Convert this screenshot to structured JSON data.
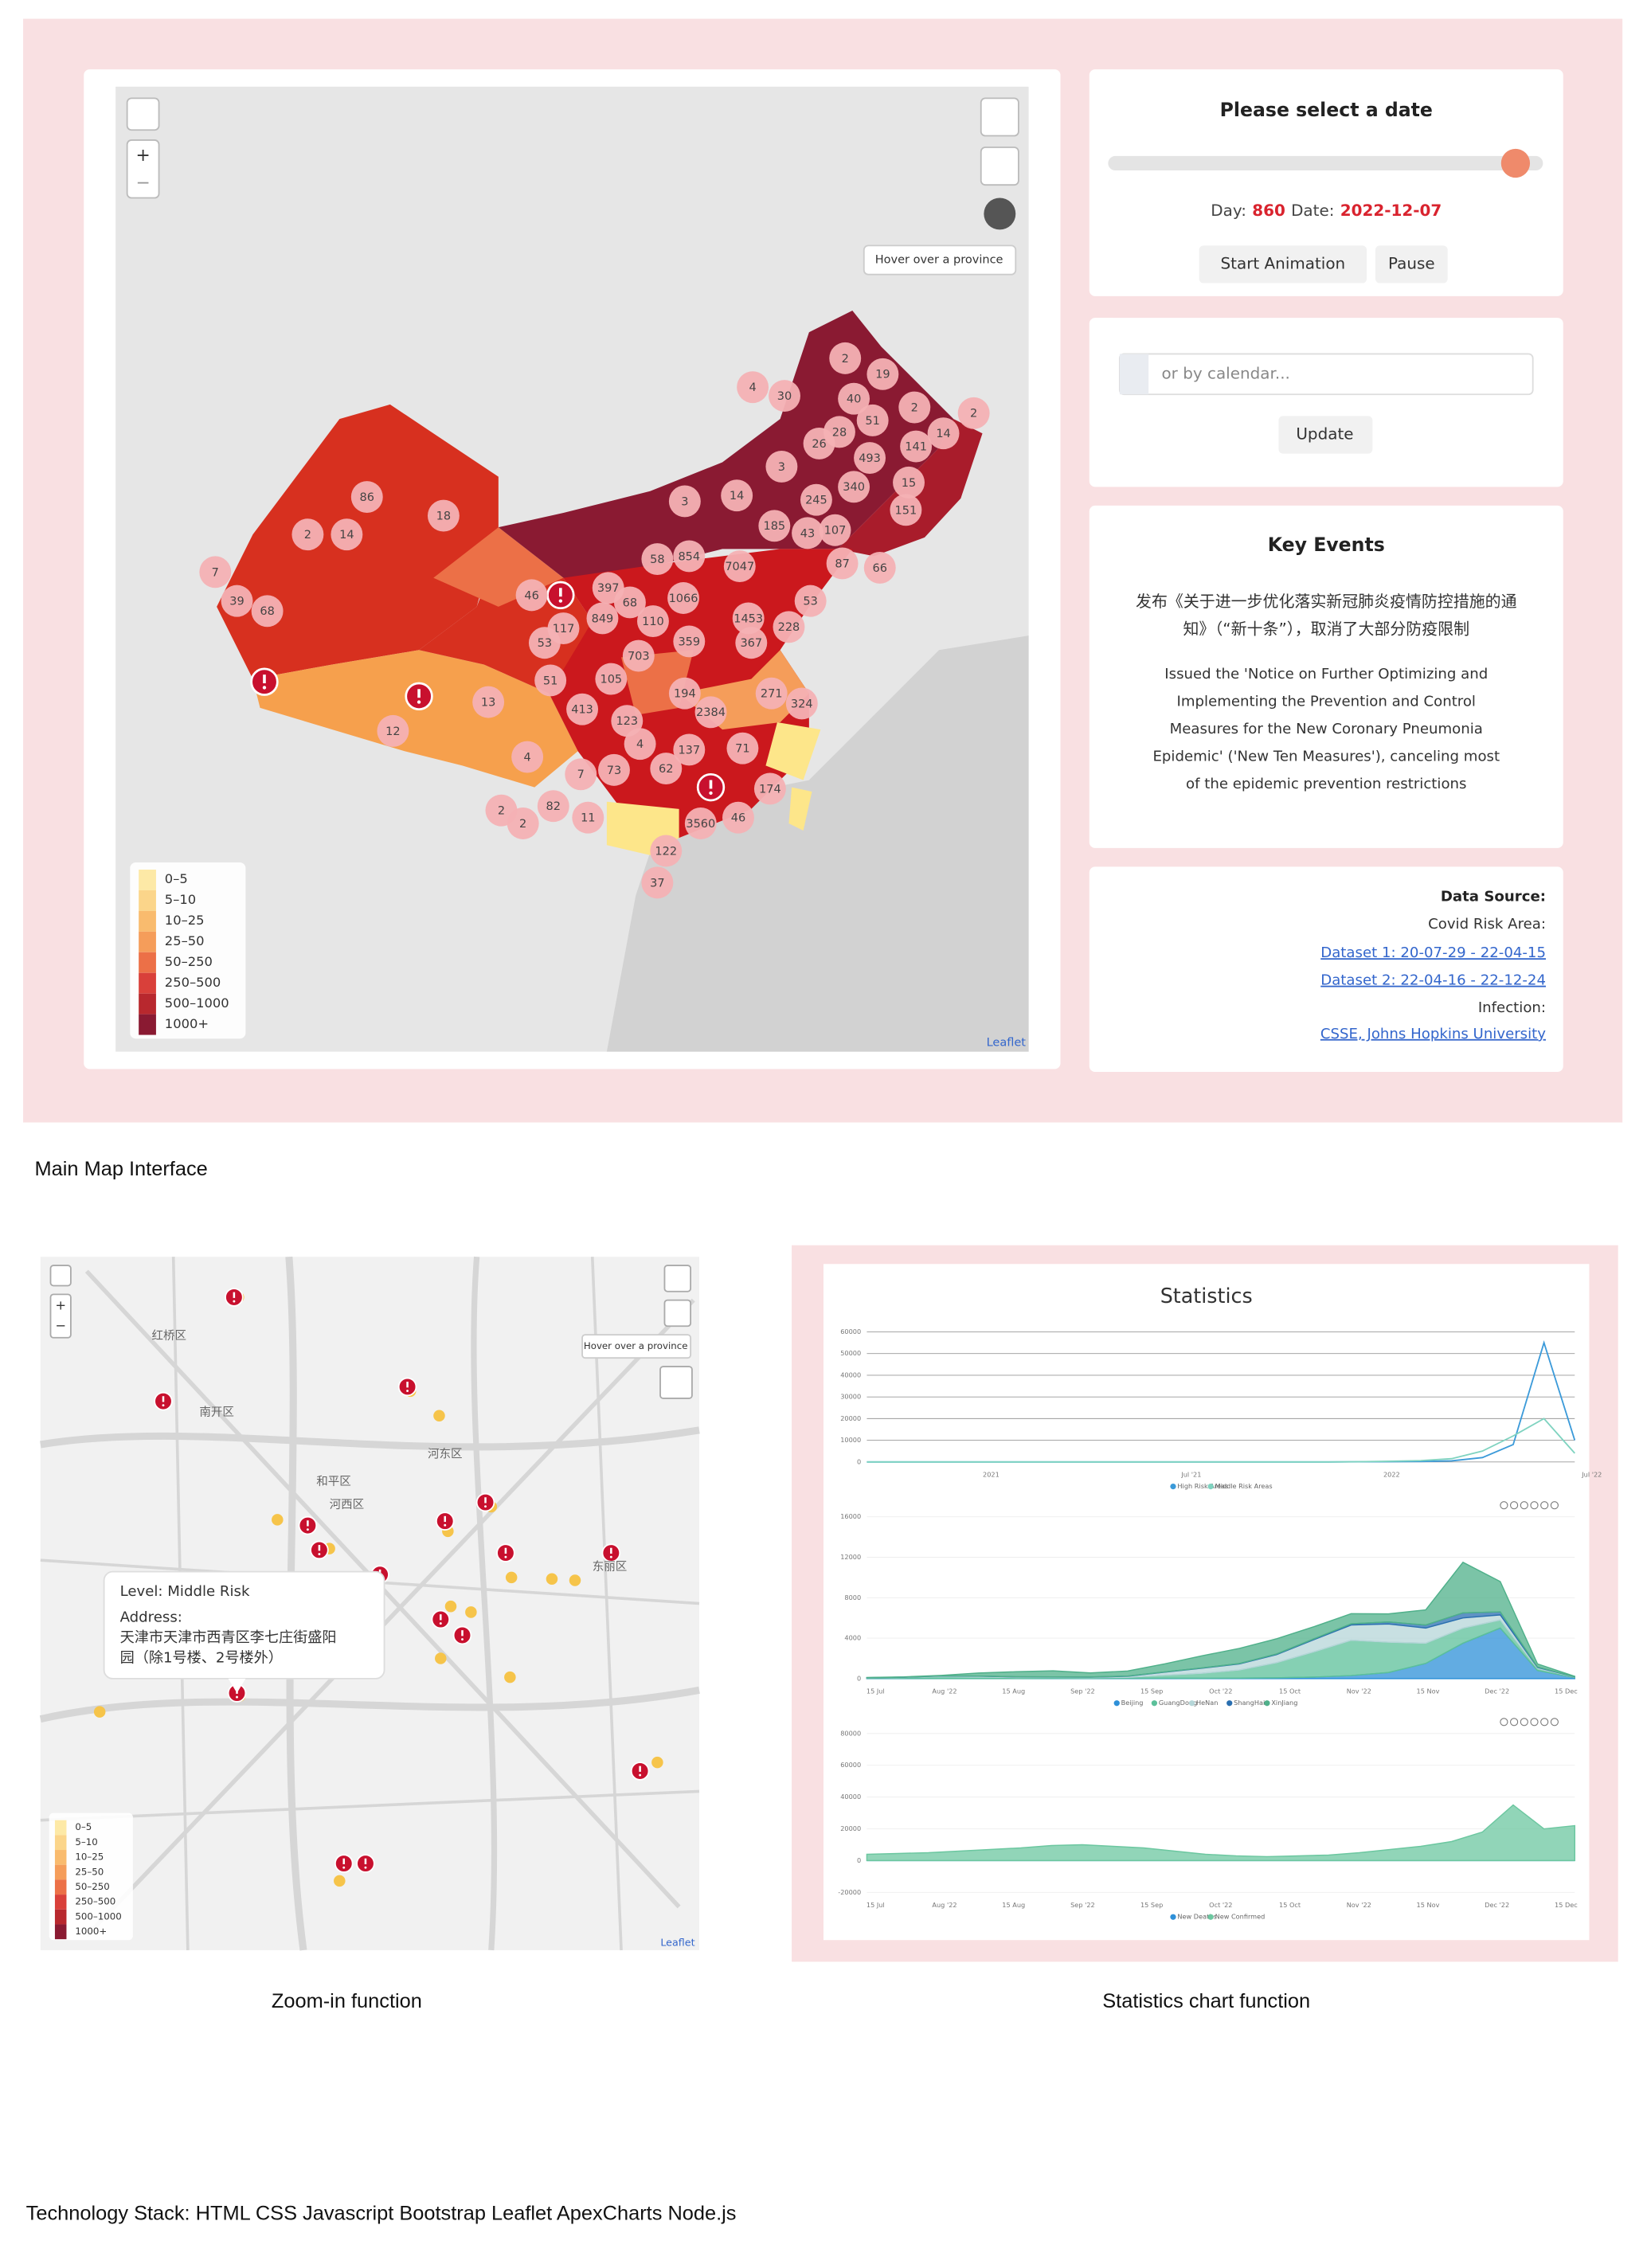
{
  "main_map": {
    "zoom_in": "+",
    "zoom_out": "−",
    "hover_hint": "Hover over a province",
    "attribution": "Leaflet",
    "clusters": [
      2,
      19,
      4,
      30,
      40,
      2,
      51,
      2,
      14,
      26,
      28,
      493,
      141,
      3,
      340,
      15,
      3,
      14,
      245,
      151,
      86,
      18,
      2,
      14,
      185,
      43,
      107,
      87,
      66,
      7,
      39,
      68,
      58,
      854,
      7047,
      46,
      397,
      68,
      1066,
      1453,
      53,
      117,
      849,
      110,
      228,
      53,
      359,
      367,
      703,
      51,
      105,
      194,
      271,
      413,
      123,
      2384,
      324,
      4,
      137,
      71,
      13,
      12,
      4,
      7,
      73,
      62,
      2,
      82,
      11,
      174,
      2,
      3560,
      46,
      122,
      37
    ],
    "legend": [
      "0–5",
      "5–10",
      "10–25",
      "25–50",
      "50–250",
      "250–500",
      "500–1000",
      "1000+"
    ],
    "legend_colors": [
      "#fde9a6",
      "#fbd58a",
      "#f9bb6e",
      "#f59d5a",
      "#ec7047",
      "#d9403a",
      "#b8282e",
      "#8a1a32"
    ]
  },
  "date_panel": {
    "title": "Please select a date",
    "day_label": "Day:",
    "day": 860,
    "date_label": "Date:",
    "date": "2022-12-07",
    "buttons": [
      "Start Animation",
      "Pause"
    ]
  },
  "calendar_panel": {
    "placeholder": "or by calendar...",
    "button": "Update"
  },
  "key_events": {
    "title": "Key Events",
    "zh_lines": [
      "发布《关于进一步优化落实新冠肺炎疫情防控措施的通",
      "知》（“新十条”），取消了大部分防疫限制"
    ],
    "en_lines": [
      "Issued the 'Notice on Further Optimizing and",
      "Implementing the Prevention and Control",
      "Measures for the New Coronary Pneumonia",
      "Epidemic' ('New Ten Measures'), canceling most",
      "of the epidemic prevention restrictions"
    ]
  },
  "data_source": {
    "title": "Data Source:",
    "risk_label": "Covid Risk Area:",
    "links": [
      "Dataset 1: 20-07-29 - 22-04-15",
      "Dataset 2: 22-04-16 - 22-12-24"
    ],
    "infection_label": "Infection:",
    "infection_link": "CSSE, Johns Hopkins University"
  },
  "zoom_map": {
    "zoom_in": "+",
    "zoom_out": "−",
    "hover_hint": "Hover over a province",
    "attribution": "Leaflet",
    "districts": [
      "红桥区",
      "南开区",
      "河东区",
      "和平区",
      "河西区",
      "东丽区"
    ],
    "popup": {
      "level": "Level: Middle Risk",
      "address_label": "Address:",
      "address_lines": [
        "天津市天津市西青区李七庄街盛阳",
        "园（除1号楼、2号楼外）"
      ]
    },
    "legend": [
      "0–5",
      "5–10",
      "10–25",
      "25–50",
      "50–250",
      "250–500",
      "500–1000",
      "1000+"
    ]
  },
  "statistics": {
    "title": "Statistics",
    "charts": [
      {
        "type": "line",
        "x_labels": [
          "2021",
          "Jul '21",
          "2022",
          "Jul '22"
        ],
        "ylim": [
          0,
          60000
        ],
        "yticks": [
          0,
          10000,
          20000,
          30000,
          40000,
          50000,
          60000
        ],
        "series": [
          {
            "name": "High Risk Areas",
            "color": "#3b9ad9",
            "values": [
              0,
              0,
              0,
              0,
              0,
              0,
              0,
              0,
              0,
              0,
              0,
              0,
              0,
              0,
              0,
              0,
              50,
              100,
              200,
              500,
              2000,
              8000,
              55000,
              10000
            ]
          },
          {
            "name": "Middle Risk Areas",
            "color": "#7fd3c0",
            "values": [
              0,
              0,
              0,
              0,
              0,
              0,
              0,
              0,
              0,
              0,
              0,
              0,
              0,
              0,
              0,
              0,
              100,
              300,
              600,
              1500,
              5000,
              12000,
              20000,
              4000
            ]
          }
        ]
      },
      {
        "type": "area",
        "stacked": true,
        "x_labels": [
          "15 Jul",
          "Aug '22",
          "15 Aug",
          "Sep '22",
          "15 Sep",
          "Oct '22",
          "15 Oct",
          "Nov '22",
          "15 Nov",
          "Dec '22",
          "15 Dec"
        ],
        "ylim": [
          0,
          16000
        ],
        "yticks": [
          0,
          4000,
          8000,
          12000,
          16000
        ],
        "series": [
          {
            "name": "Beijing",
            "color": "#2e90d8",
            "values": [
              20,
              20,
              10,
              10,
              10,
              20,
              20,
              30,
              40,
              30,
              50,
              80,
              150,
              300,
              600,
              1500,
              3500,
              5000,
              800,
              100
            ]
          },
          {
            "name": "GuangDong",
            "color": "#5cc09a",
            "values": [
              50,
              100,
              200,
              150,
              100,
              100,
              80,
              100,
              300,
              500,
              800,
              1500,
              2500,
              3500,
              3000,
              2000,
              1500,
              800,
              200,
              50
            ]
          },
          {
            "name": "HeNan",
            "color": "#b5d6d8",
            "values": [
              10,
              20,
              50,
              80,
              60,
              40,
              50,
              100,
              300,
              500,
              600,
              800,
              1200,
              1500,
              1800,
              1500,
              1000,
              500,
              100,
              20
            ]
          },
          {
            "name": "ShangHai",
            "color": "#2a6fb0",
            "values": [
              10,
              10,
              10,
              10,
              10,
              10,
              10,
              20,
              20,
              30,
              40,
              60,
              80,
              120,
              200,
              300,
              500,
              300,
              50,
              10
            ]
          },
          {
            "name": "XinJiang",
            "color": "#4fb08a",
            "values": [
              20,
              20,
              50,
              300,
              500,
              600,
              400,
              500,
              800,
              1200,
              1500,
              1500,
              1200,
              1000,
              800,
              1500,
              5000,
              3000,
              300,
              50
            ]
          }
        ]
      },
      {
        "type": "area",
        "x_labels": [
          "15 Jul",
          "Aug '22",
          "15 Aug",
          "Sep '22",
          "15 Sep",
          "Oct '22",
          "15 Oct",
          "Nov '22",
          "15 Nov",
          "Dec '22",
          "15 Dec"
        ],
        "ylim": [
          -20000,
          80000
        ],
        "yticks": [
          -20000,
          0,
          20000,
          40000,
          60000,
          80000
        ],
        "series": [
          {
            "name": "New Deaths",
            "color": "#2e90d8",
            "values": [
              0,
              0,
              0,
              0,
              0,
              0,
              0,
              0,
              0,
              0,
              0,
              0,
              0,
              0,
              0,
              0,
              0,
              0,
              0,
              0,
              0,
              0,
              0,
              0
            ]
          },
          {
            "name": "New Confirmed",
            "color": "#6cc7a0",
            "values": [
              4000,
              4500,
              5000,
              6000,
              7000,
              8000,
              9500,
              10000,
              9000,
              8000,
              6000,
              4000,
              3000,
              2500,
              3000,
              3500,
              5000,
              7000,
              9000,
              12000,
              18000,
              35000,
              20000,
              22000
            ]
          }
        ]
      }
    ]
  },
  "captions": {
    "main": "Main Map Interface",
    "zoom": "Zoom-in function",
    "stats": "Statistics chart function",
    "tech": "Technology Stack: HTML CSS Javascript Bootstrap Leaflet ApexCharts Node.js"
  }
}
